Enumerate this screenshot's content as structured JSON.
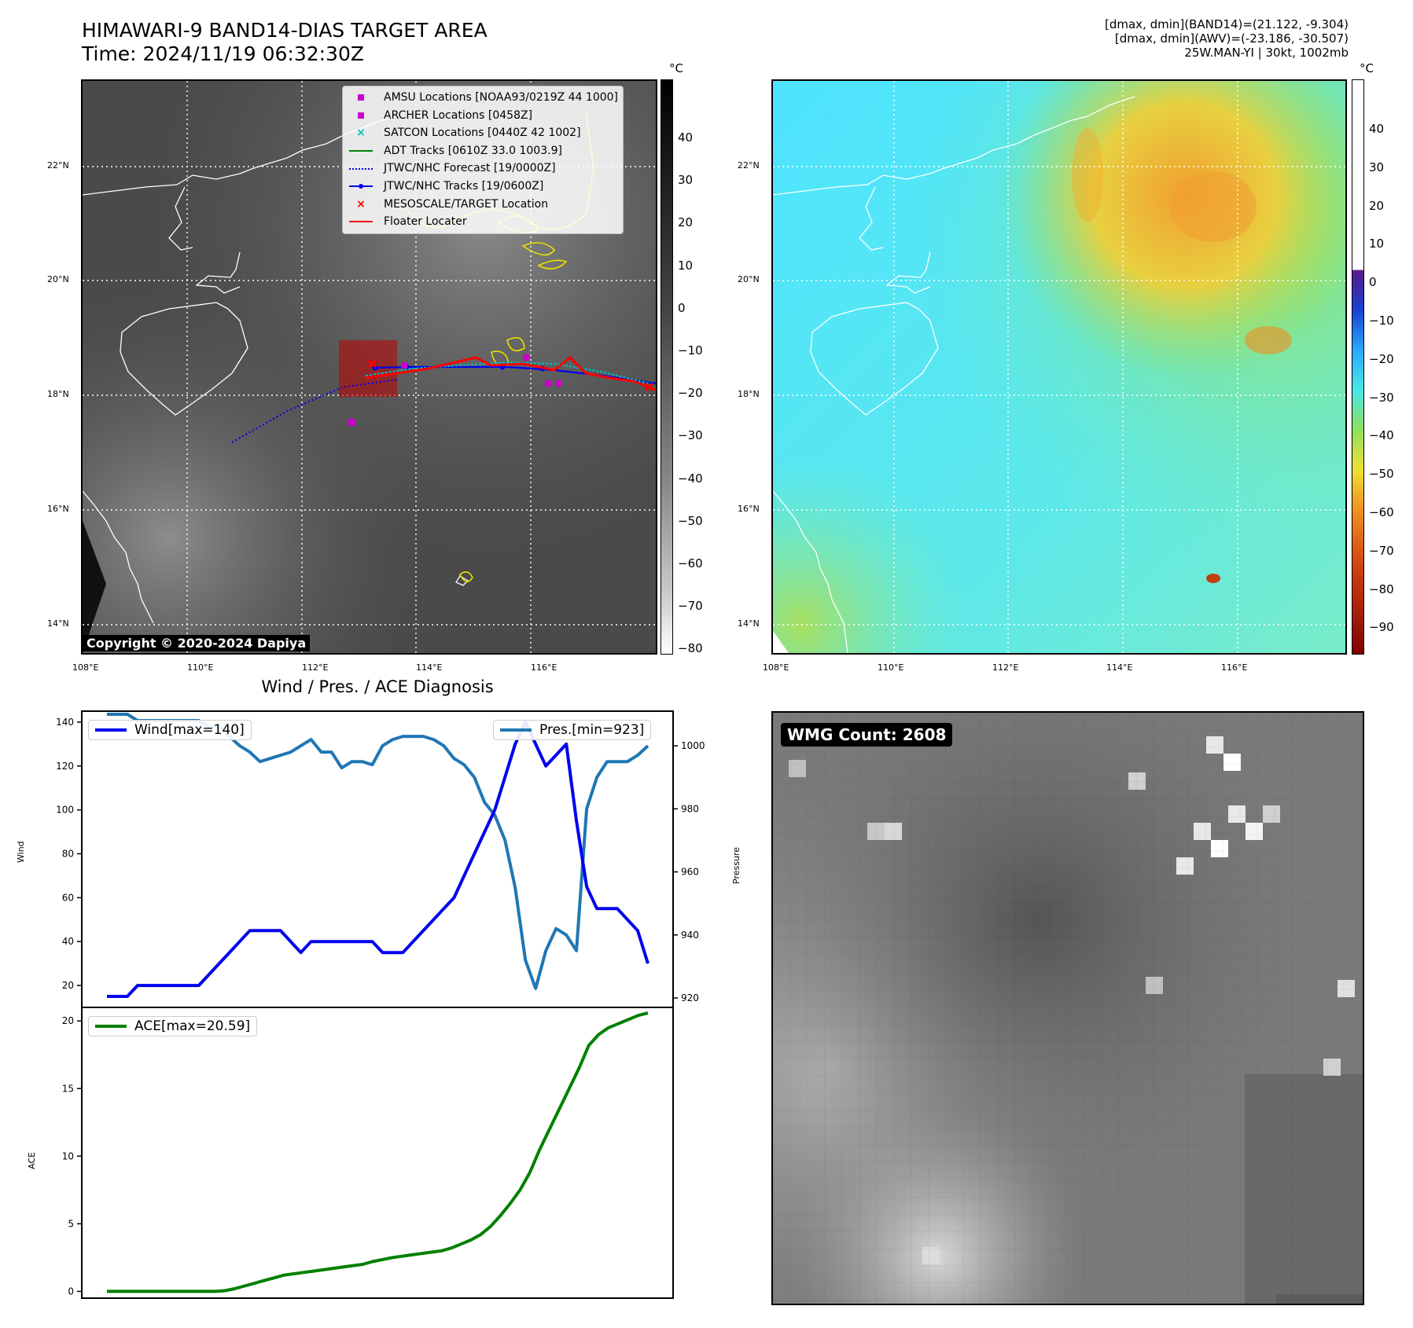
{
  "header": {
    "title_line1": "HIMAWARI-9 BAND14-DIAS TARGET AREA",
    "title_line2": "Time: 2024/11/19 06:32:30Z",
    "info_line1": "[dmax, dmin](BAND14)=(21.122, -9.304)",
    "info_line2": "[dmax, dmin](AWV)=(-23.186, -30.507)",
    "info_line3": "25W.MAN-YI | 30kt, 1002mb"
  },
  "map_left": {
    "unit": "°C",
    "colorbar_ticks": [
      "40",
      "30",
      "20",
      "10",
      "0",
      "−10",
      "−20",
      "−30",
      "−40",
      "−50",
      "−60",
      "−70",
      "−80"
    ],
    "lat_labels": [
      "22°N",
      "20°N",
      "18°N",
      "16°N",
      "14°N"
    ],
    "lon_labels": [
      "108°E",
      "110°E",
      "112°E",
      "114°E",
      "116°E"
    ],
    "copyright": "Copyright © 2020-2024 Dapiya",
    "legend": [
      {
        "label": "AMSU Locations [NOAA93/0219Z 44 1000]",
        "key": "magenta-square"
      },
      {
        "label": "ARCHER Locations [0458Z]",
        "key": "magenta-square"
      },
      {
        "label": "SATCON Locations [0440Z 42 1002]",
        "key": "cyan-x"
      },
      {
        "label": "ADT Tracks [0610Z 33.0 1003.9]",
        "key": "green-line"
      },
      {
        "label": "JTWC/NHC Forecast [19/0000Z]",
        "key": "blue-dotted"
      },
      {
        "label": "JTWC/NHC Tracks [19/0600Z]",
        "key": "blue-line-dot"
      },
      {
        "label": "MESOSCALE/TARGET Location",
        "key": "red-x"
      },
      {
        "label": "Floater Locater",
        "key": "red-line"
      }
    ]
  },
  "map_right": {
    "unit": "°C",
    "colorbar_ticks": [
      "40",
      "30",
      "20",
      "10",
      "0",
      "−10",
      "−20",
      "−30",
      "−40",
      "−50",
      "−60",
      "−70",
      "−80",
      "−90"
    ],
    "lat_labels": [
      "22°N",
      "20°N",
      "18°N",
      "16°N",
      "14°N"
    ],
    "lon_labels": [
      "108°E",
      "110°E",
      "112°E",
      "114°E",
      "116°E"
    ]
  },
  "wmg": {
    "label": "WMG Count: 2608"
  },
  "colors": {
    "wind": "#0000ee",
    "pressure": "#1f77b4",
    "ace": "#008000"
  },
  "chart_data": [
    {
      "type": "line",
      "title": "Wind / Pres. / ACE Diagnosis",
      "xlabel": "",
      "ylabel": "Wind",
      "ylabel_right": "Pressure",
      "ylim": [
        10,
        145
      ],
      "ylim_right": [
        917,
        1011
      ],
      "yticks": [
        20,
        40,
        60,
        80,
        100,
        120,
        140
      ],
      "yticks_right": [
        920,
        940,
        960,
        980,
        1000
      ],
      "series": [
        {
          "name": "Wind[max=140]",
          "axis": "left",
          "values": [
            15,
            15,
            15,
            20,
            20,
            20,
            20,
            20,
            20,
            20,
            25,
            30,
            35,
            40,
            45,
            45,
            45,
            45,
            40,
            35,
            40,
            40,
            40,
            40,
            40,
            40,
            40,
            35,
            35,
            35,
            40,
            45,
            50,
            55,
            60,
            70,
            80,
            90,
            100,
            115,
            130,
            140,
            130,
            120,
            125,
            130,
            95,
            65,
            55,
            55,
            55,
            50,
            45,
            30
          ]
        },
        {
          "name": "Pres.[min=923]",
          "axis": "right",
          "values": [
            1010,
            1010,
            1010,
            1008,
            1008,
            1008,
            1008,
            1008,
            1008,
            1008,
            1006,
            1006,
            1003,
            1000,
            998,
            995,
            996,
            997,
            998,
            1000,
            1002,
            998,
            998,
            993,
            995,
            995,
            994,
            1000,
            1002,
            1003,
            1003,
            1003,
            1002,
            1000,
            996,
            994,
            990,
            982,
            978,
            970,
            955,
            932,
            923,
            935,
            942,
            940,
            935,
            980,
            990,
            995,
            995,
            995,
            997,
            1000
          ]
        }
      ]
    },
    {
      "type": "line",
      "ylabel": "ACE",
      "ylim": [
        -0.5,
        21
      ],
      "yticks": [
        0,
        5,
        10,
        15,
        20
      ],
      "series": [
        {
          "name": "ACE[max=20.59]",
          "values": [
            0,
            0,
            0,
            0,
            0,
            0,
            0,
            0,
            0,
            0,
            0,
            0,
            0.05,
            0.2,
            0.4,
            0.6,
            0.8,
            1.0,
            1.2,
            1.3,
            1.4,
            1.5,
            1.6,
            1.7,
            1.8,
            1.9,
            2.0,
            2.2,
            2.35,
            2.5,
            2.6,
            2.7,
            2.8,
            2.9,
            3.0,
            3.2,
            3.5,
            3.8,
            4.2,
            4.8,
            5.6,
            6.5,
            7.5,
            8.8,
            10.5,
            12.0,
            13.5,
            15.0,
            16.5,
            18.2,
            19.0,
            19.5,
            19.8,
            20.1,
            20.4,
            20.59
          ]
        }
      ]
    }
  ]
}
